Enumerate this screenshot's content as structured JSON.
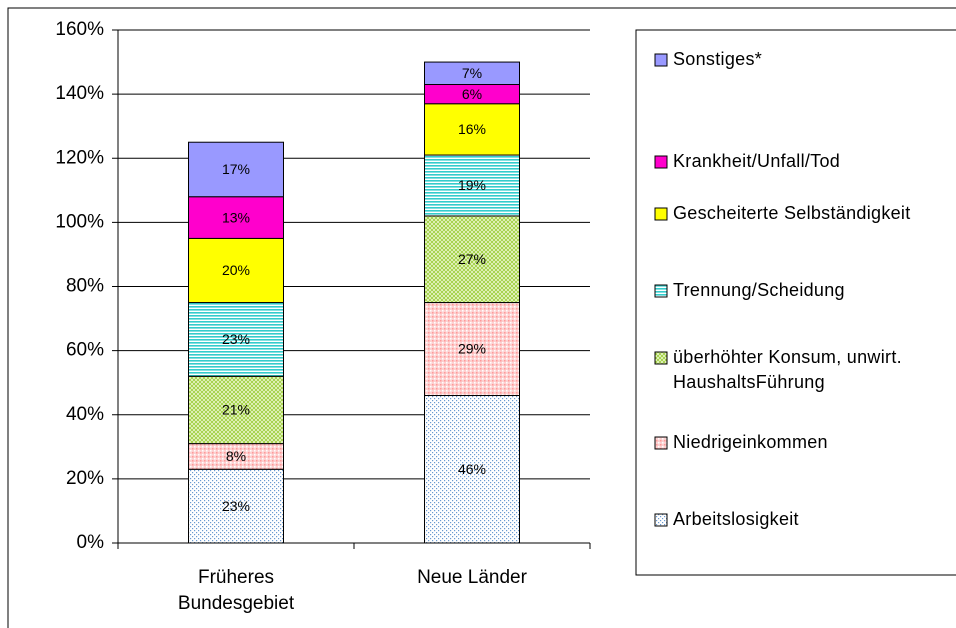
{
  "chart_data": {
    "type": "stacked_bar",
    "categories": [
      "Früheres Bundesgebiet",
      "Neue Länder"
    ],
    "series": [
      {
        "name": "Arbeitslosigkeit",
        "color": "#6a9ad0",
        "pattern": "dots",
        "values": [
          23,
          46
        ],
        "value_labels": [
          "23%",
          "46%"
        ]
      },
      {
        "name": "Niedrigeinkommen",
        "color": "#ff9999",
        "pattern": "dots-filled",
        "values": [
          8,
          29
        ],
        "value_labels": [
          "8%",
          "29%"
        ]
      },
      {
        "name": "überhöhter Konsum, unwirt. HaushaltsFührung",
        "color": "#99cc33",
        "pattern": "hatch",
        "values": [
          21,
          27
        ],
        "value_labels": [
          "21%",
          "27%"
        ]
      },
      {
        "name": "Trennung/Scheidung",
        "color": "#33cccc",
        "pattern": "lines",
        "values": [
          23,
          19
        ],
        "value_labels": [
          "23%",
          "19%"
        ]
      },
      {
        "name": "Gescheiterte Selbständigkeit",
        "color": "#ffff00",
        "pattern": "solid",
        "values": [
          20,
          16
        ],
        "value_labels": [
          "20%",
          "16%"
        ]
      },
      {
        "name": "Krankheit/Unfall/Tod",
        "color": "#ff00cc",
        "pattern": "solid",
        "values": [
          13,
          6
        ],
        "value_labels": [
          "13%",
          "6%"
        ]
      },
      {
        "name": "Sonstiges*",
        "color": "#9999ff",
        "pattern": "solid",
        "values": [
          17,
          7
        ],
        "value_labels": [
          "17%",
          "7%"
        ]
      }
    ],
    "ylim": [
      0,
      160
    ],
    "yticks": [
      {
        "value": 0,
        "label": "0%"
      },
      {
        "value": 20,
        "label": "20%"
      },
      {
        "value": 40,
        "label": "40%"
      },
      {
        "value": 60,
        "label": "60%"
      },
      {
        "value": 80,
        "label": "80%"
      },
      {
        "value": 100,
        "label": "100%"
      },
      {
        "value": 120,
        "label": "120%"
      },
      {
        "value": 140,
        "label": "140%"
      },
      {
        "value": 160,
        "label": "160%"
      }
    ],
    "grid": true,
    "legend": "right"
  }
}
